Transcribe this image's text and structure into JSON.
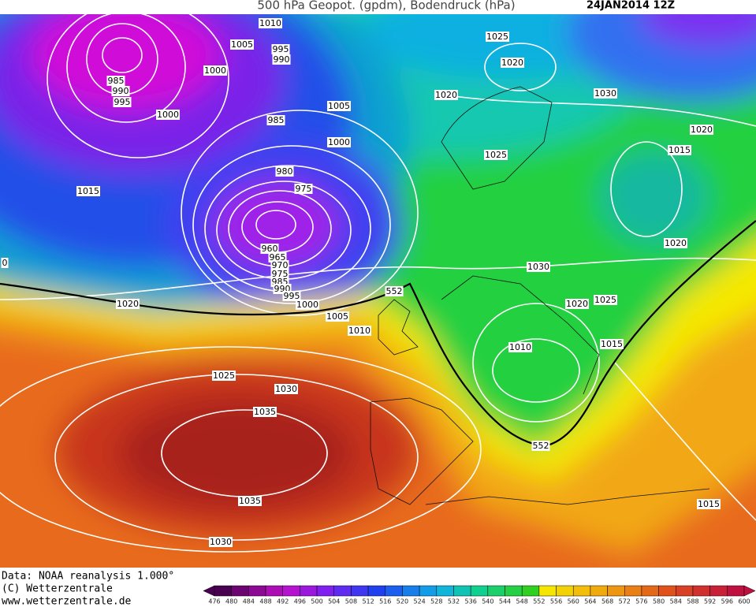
{
  "header": {
    "title": "500 hPa Geopot. (gpdm), Bodendruck (hPa)",
    "date": "24JAN2014 12Z"
  },
  "isobar_labels": [
    "1010",
    "1005",
    "995",
    "990",
    "1000",
    "985",
    "990",
    "995",
    "1000",
    "985",
    "1005",
    "1000",
    "980",
    "975",
    "1015",
    "960",
    "965",
    "970",
    "975",
    "985",
    "990",
    "995",
    "1000",
    "1005",
    "1010",
    "1020",
    "552",
    "1025",
    "1020",
    "1020",
    "1030",
    "1020",
    "1015",
    "1025",
    "1020",
    "1030",
    "1020",
    "1025",
    "1015",
    "1010",
    "1025",
    "1030",
    "1035",
    "552",
    "1035",
    "1015",
    "1030",
    "0"
  ],
  "footer": [
    "Data: NOAA reanalysis 1.000°",
    "(C) Wetterzentrale",
    "www.wetterzentrale.de"
  ],
  "colorbar": {
    "ticks": [
      476,
      480,
      484,
      488,
      492,
      496,
      500,
      504,
      508,
      512,
      516,
      520,
      524,
      528,
      532,
      536,
      540,
      544,
      548,
      552,
      556,
      560,
      564,
      568,
      572,
      576,
      580,
      584,
      588,
      592,
      596,
      600
    ]
  }
}
